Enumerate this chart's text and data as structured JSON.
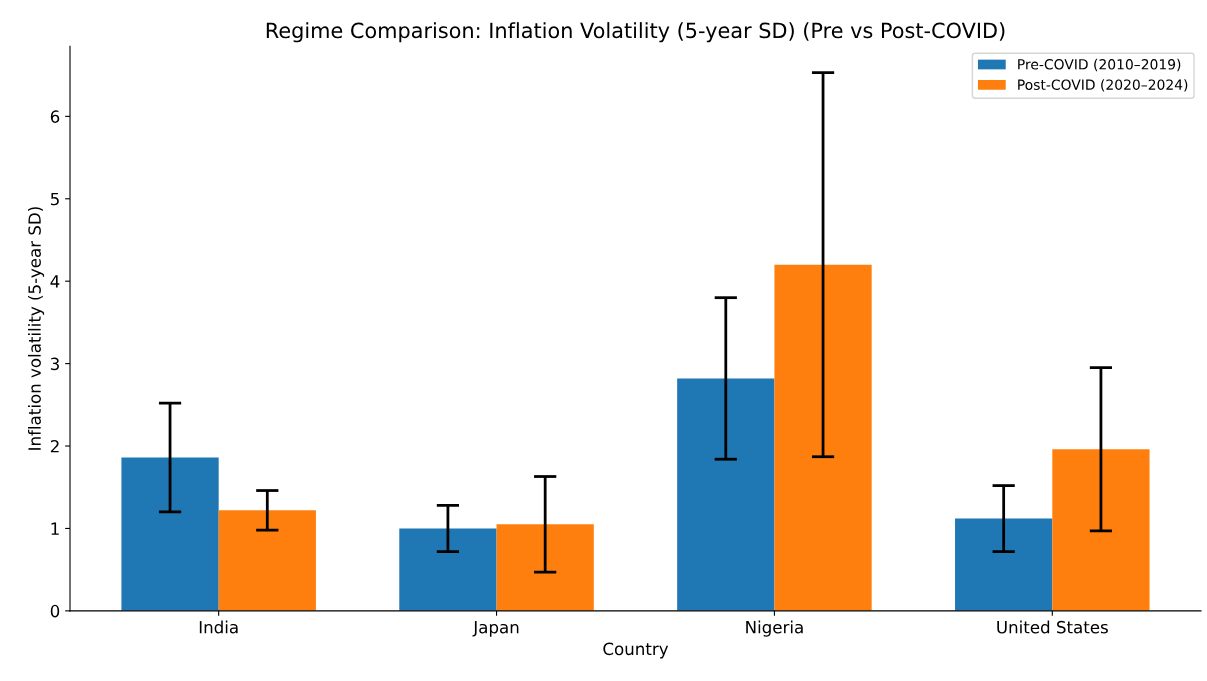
{
  "chart_data": {
    "type": "bar",
    "title": "Regime Comparison: Inflation Volatility (5-year SD) (Pre vs Post-COVID)",
    "xlabel": "Country",
    "ylabel": "Inflation volatility (5-year SD)",
    "categories": [
      "India",
      "Japan",
      "Nigeria",
      "United States"
    ],
    "series": [
      {
        "name": "Pre-COVID (2010–2019)",
        "color": "#1f77b4",
        "values": [
          1.86,
          1.0,
          2.82,
          1.12
        ],
        "errors": [
          0.66,
          0.28,
          0.98,
          0.4
        ]
      },
      {
        "name": "Post-COVID (2020–2024)",
        "color": "#ff7f0e",
        "values": [
          1.22,
          1.05,
          4.2,
          1.96
        ],
        "errors": [
          0.24,
          0.58,
          2.33,
          0.99
        ]
      }
    ],
    "ylim": [
      0,
      6.85
    ],
    "yticks": [
      0,
      1,
      2,
      3,
      4,
      5,
      6
    ],
    "grid": false,
    "legend": "top right"
  }
}
